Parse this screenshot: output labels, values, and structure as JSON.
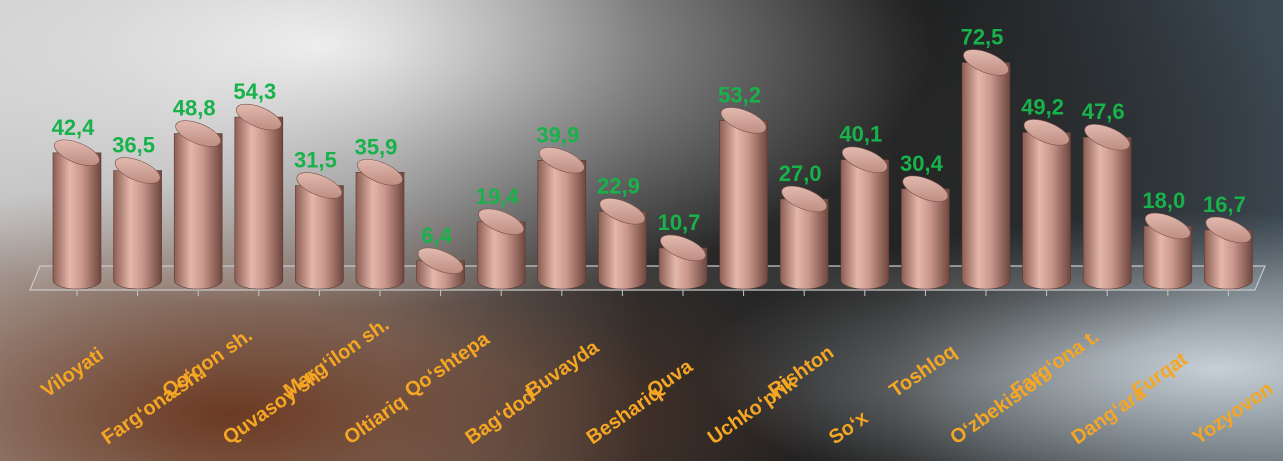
{
  "chart_data": {
    "type": "bar",
    "categories": [
      "Viloyati",
      "Farg‘ona sh.",
      "Qo‘qon sh.",
      "Quvasoy sh.",
      "Marg‘ilon sh.",
      "Oltiariq",
      "Qo‘shtepa",
      "Bag‘dod",
      "Buvayda",
      "Beshariq",
      "Quva",
      "Uchko‘prik",
      "Rishton",
      "So‘x",
      "Toshloq",
      "O‘zbekiston",
      "Farg‘ona t.",
      "Dang‘ara",
      "Furqat",
      "Yozyovon"
    ],
    "values": [
      42.4,
      36.5,
      48.8,
      54.3,
      31.5,
      35.9,
      6.4,
      19.4,
      39.9,
      22.9,
      10.7,
      53.2,
      27.0,
      40.1,
      30.4,
      72.5,
      49.2,
      47.6,
      18.0,
      16.7
    ],
    "value_labels": [
      "42,4",
      "36,5",
      "48,8",
      "54,3",
      "31,5",
      "35,9",
      "6,4",
      "19,4",
      "39,9",
      "22,9",
      "10,7",
      "53,2",
      "27,0",
      "40,1",
      "30,4",
      "72,5",
      "49,2",
      "47,6",
      "18,0",
      "16,7"
    ],
    "ylim": [
      0,
      75
    ],
    "bar_color": "#c9978b",
    "value_label_color": "#18b24a",
    "category_label_color": "#f5a623"
  }
}
